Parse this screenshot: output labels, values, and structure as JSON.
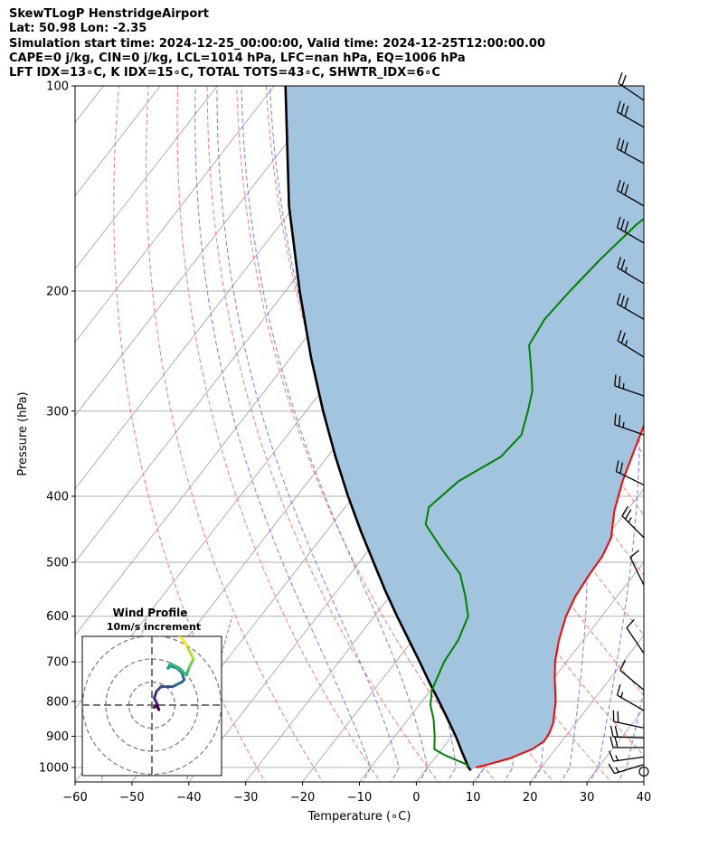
{
  "header": {
    "line1": "SkewTLogP HenstridgeAirport",
    "line2": "Lat: 50.98   Lon: -2.35",
    "line3": "Simulation start time: 2024-12-25_00:00:00, Valid time: 2024-12-25T12:00:00.00",
    "line4": "CAPE=0 j/kg, CIN=0 j/kg, LCL=1014 hPa, LFC=nan hPa, EQ=1006 hPa",
    "line5": "LFT IDX=13∘C, K IDX=15∘C, TOTAL TOTS=43∘C, SHWTR_IDX=6∘C"
  },
  "chart_data": [
    {
      "type": "line",
      "subtype": "skew-T log-P diagram",
      "xlabel": "Temperature (∘C)",
      "ylabel": "Pressure (hPa)",
      "x_ticks": [
        -60,
        -50,
        -40,
        -30,
        -20,
        -10,
        0,
        10,
        20,
        30,
        40
      ],
      "x_tick_labels": [
        "−60",
        "−50",
        "−40",
        "−30",
        "−20",
        "−10",
        "0",
        "10",
        "20",
        "30",
        "40"
      ],
      "y_ticks": [
        100,
        200,
        300,
        400,
        500,
        600,
        700,
        800,
        900,
        1000
      ],
      "y_scale": "log",
      "ylim": [
        1050,
        100
      ],
      "xlim": [
        -60,
        40
      ],
      "grid": true,
      "colors": {
        "temperature": "#ff0000",
        "dewpoint": "#008000",
        "parcel": "#000000",
        "shading": "#a2c4df",
        "dry_adiabat": "#ff6a6a",
        "moist_adiabat": "#6a6aff",
        "mixing_ratio": "#9b59b6"
      },
      "series": [
        {
          "role": "temperature",
          "points": [
            [
              1000,
              8.5
            ],
            [
              990,
              10.2
            ],
            [
              970,
              13.2
            ],
            [
              940,
              15.9
            ],
            [
              915,
              16.9
            ],
            [
              890,
              16.7
            ],
            [
              860,
              16.0
            ],
            [
              800,
              13.5
            ],
            [
              740,
              10.2
            ],
            [
              700,
              8.0
            ],
            [
              650,
              5.7
            ],
            [
              600,
              3.7
            ],
            [
              560,
              2.6
            ],
            [
              520,
              2.1
            ],
            [
              490,
              1.9
            ],
            [
              460,
              0.9
            ],
            [
              420,
              -2.2
            ],
            [
              380,
              -4.8
            ],
            [
              340,
              -7.1
            ],
            [
              300,
              -9.6
            ],
            [
              270,
              -12.1
            ],
            [
              245,
              -14.0
            ],
            [
              225,
              -15.3
            ],
            [
              205,
              -16.0
            ],
            [
              190,
              -15.9
            ],
            [
              175,
              -14.7
            ],
            [
              160,
              -12.5
            ],
            [
              150,
              -11.1
            ],
            [
              140,
              -8.2
            ],
            [
              130,
              -5.1
            ],
            [
              120,
              -1.7
            ],
            [
              110,
              2.4
            ],
            [
              100,
              6.0
            ]
          ]
        },
        {
          "role": "dewpoint",
          "points": [
            [
              1000,
              7.0
            ],
            [
              990,
              6.5
            ],
            [
              960,
              1.5
            ],
            [
              940,
              -1.3
            ],
            [
              900,
              -3.0
            ],
            [
              850,
              -5.5
            ],
            [
              810,
              -8.0
            ],
            [
              770,
              -9.8
            ],
            [
              700,
              -11.5
            ],
            [
              650,
              -12.0
            ],
            [
              600,
              -13.5
            ],
            [
              560,
              -16.8
            ],
            [
              520,
              -20.7
            ],
            [
              480,
              -27.0
            ],
            [
              440,
              -33.5
            ],
            [
              415,
              -35.3
            ],
            [
              380,
              -33.6
            ],
            [
              350,
              -29.5
            ],
            [
              325,
              -28.9
            ],
            [
              300,
              -31.0
            ],
            [
              280,
              -33.0
            ],
            [
              260,
              -36.2
            ],
            [
              240,
              -39.8
            ],
            [
              220,
              -40.6
            ],
            [
              200,
              -40.0
            ],
            [
              180,
              -39.0
            ],
            [
              160,
              -37.4
            ],
            [
              145,
              -35.0
            ],
            [
              130,
              -30.5
            ],
            [
              120,
              -29.1
            ],
            [
              110,
              -28.3
            ],
            [
              100,
              -27.9
            ]
          ]
        },
        {
          "role": "parcel",
          "points": [
            [
              1010,
              8.0
            ],
            [
              1000,
              7.2
            ],
            [
              950,
              4.0
            ],
            [
              900,
              0.7
            ],
            [
              850,
              -3.0
            ],
            [
              800,
              -7.0
            ],
            [
              750,
              -11.3
            ],
            [
              700,
              -15.8
            ],
            [
              650,
              -20.7
            ],
            [
              600,
              -26.0
            ],
            [
              550,
              -31.6
            ],
            [
              500,
              -37.5
            ],
            [
              450,
              -44.0
            ],
            [
              400,
              -51.0
            ],
            [
              350,
              -58.6
            ],
            [
              300,
              -67.0
            ],
            [
              250,
              -76.5
            ],
            [
              200,
              -87.5
            ],
            [
              150,
              -101.0
            ],
            [
              100,
              -118.0
            ]
          ]
        }
      ],
      "wind_barbs": [
        {
          "p": 1014,
          "calm": true
        },
        {
          "p": 990,
          "dir": 253,
          "spd": 17
        },
        {
          "p": 965,
          "dir": 262,
          "spd": 19
        },
        {
          "p": 935,
          "dir": 270,
          "spd": 20
        },
        {
          "p": 905,
          "dir": 272,
          "spd": 22
        },
        {
          "p": 875,
          "dir": 282,
          "spd": 24
        },
        {
          "p": 825,
          "dir": 300,
          "spd": 15
        },
        {
          "p": 770,
          "dir": 310,
          "spd": 11
        },
        {
          "p": 680,
          "dir": 326,
          "spd": 12
        },
        {
          "p": 540,
          "dir": 334,
          "spd": 14
        },
        {
          "p": 460,
          "dir": 315,
          "spd": 25
        },
        {
          "p": 385,
          "dir": 296,
          "spd": 22
        },
        {
          "p": 325,
          "dir": 289,
          "spd": 25
        },
        {
          "p": 285,
          "dir": 289,
          "spd": 25
        },
        {
          "p": 250,
          "dir": 302,
          "spd": 26
        },
        {
          "p": 220,
          "dir": 300,
          "spd": 30
        },
        {
          "p": 195,
          "dir": 301,
          "spd": 29
        },
        {
          "p": 170,
          "dir": 300,
          "spd": 31
        },
        {
          "p": 150,
          "dir": 300,
          "spd": 32
        },
        {
          "p": 130,
          "dir": 299,
          "spd": 31
        },
        {
          "p": 115,
          "dir": 300,
          "spd": 30
        },
        {
          "p": 105,
          "dir": 304,
          "spd": 24
        }
      ]
    },
    {
      "type": "line",
      "subtype": "hodograph",
      "title": "Wind Profile",
      "subtitle": "10m/s increment",
      "rings_ms": [
        10,
        20,
        30
      ],
      "colormap": "viridis",
      "points_uv": [
        [
          1,
          -1
        ],
        [
          2,
          0
        ],
        [
          3,
          -2
        ],
        [
          2,
          1
        ],
        [
          1,
          3
        ],
        [
          2,
          6
        ],
        [
          4,
          8
        ],
        [
          9,
          8
        ],
        [
          13,
          10
        ],
        [
          14,
          11
        ],
        [
          13,
          14
        ],
        [
          11,
          16
        ],
        [
          8,
          17
        ],
        [
          7,
          16
        ],
        [
          8,
          18
        ],
        [
          12,
          16
        ],
        [
          15,
          13
        ],
        [
          16,
          16
        ],
        [
          17,
          18
        ],
        [
          18,
          20
        ],
        [
          17,
          22
        ],
        [
          15,
          26
        ],
        [
          13,
          29
        ],
        [
          12,
          30
        ]
      ]
    }
  ]
}
